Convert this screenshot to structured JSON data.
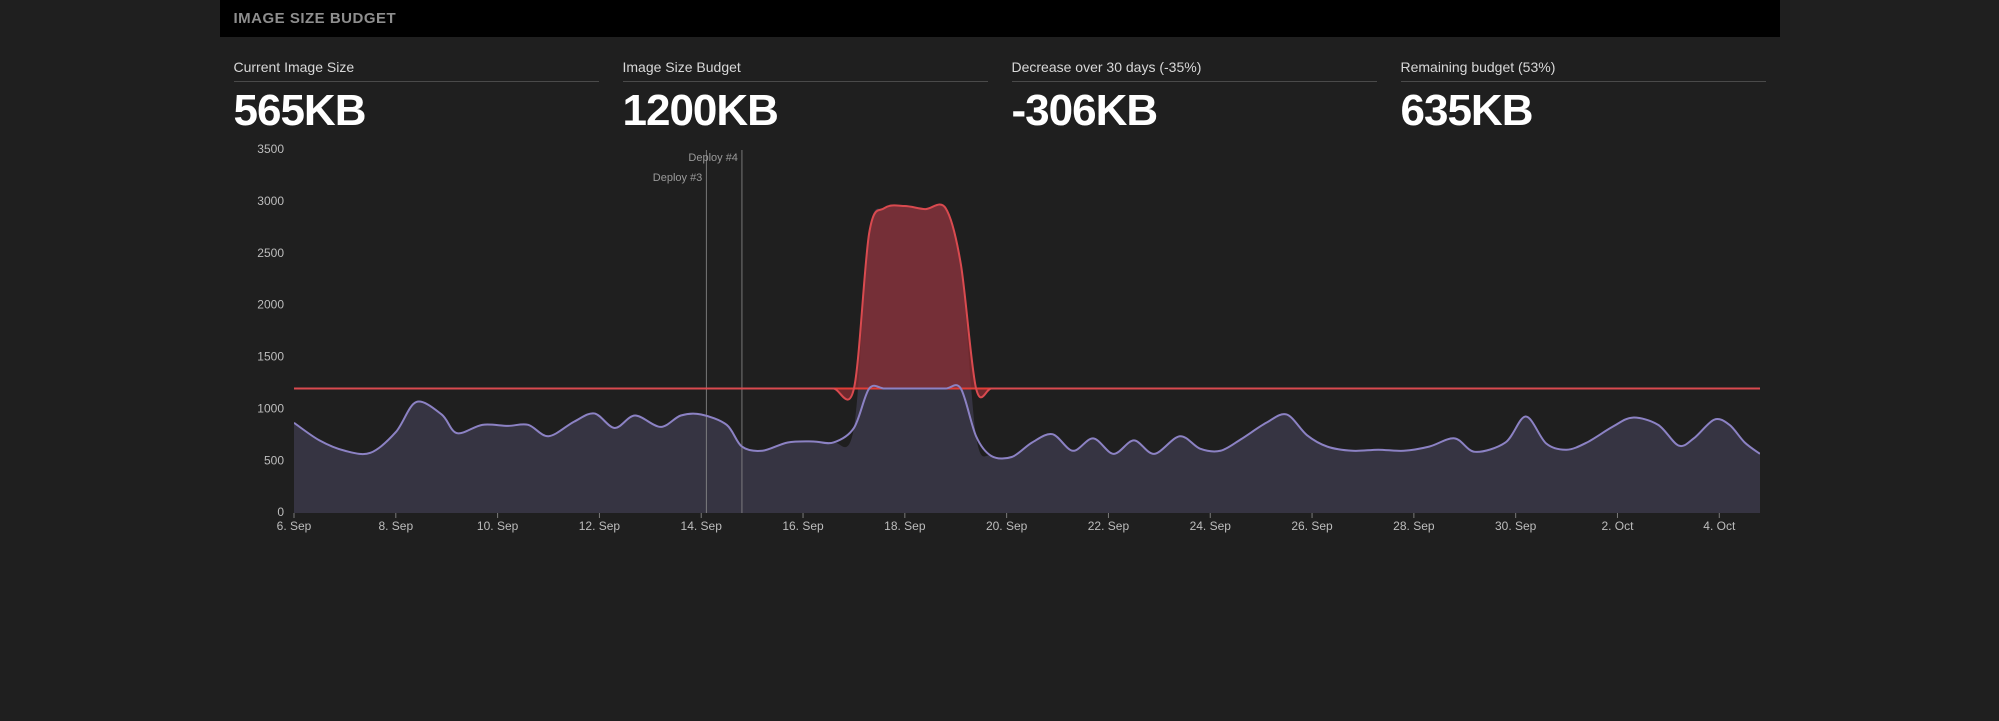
{
  "header": {
    "title": "IMAGE SIZE BUDGET"
  },
  "metrics": [
    {
      "label": "Current Image Size",
      "value": "565KB"
    },
    {
      "label": "Image Size Budget",
      "value": "1200KB"
    },
    {
      "label": "Decrease over 30 days (-35%)",
      "value": "-306KB"
    },
    {
      "label": "Remaining budget (53%)",
      "value": "635KB"
    }
  ],
  "chart": {
    "type": "area",
    "background_color": "#1f1f1f",
    "axis_font_size": 12,
    "axis_color": "#bdbdbd",
    "plot_bg": "#1f1f1f",
    "budget_line": {
      "value": 1200,
      "color": "#e03d37",
      "width": 2
    },
    "series": {
      "line_color": "#8c82c4",
      "line_width": 2,
      "fill_color": "#3b3849",
      "fill_opacity": 0.85,
      "over_budget_fill_color": "#8b2e34",
      "over_budget_fill_opacity": 0.75,
      "over_line_color": "#d94a4f"
    },
    "x_range": [
      0,
      28.8
    ],
    "y_range": [
      0,
      3500
    ],
    "y_ticks": [
      0,
      500,
      1000,
      1500,
      2000,
      2500,
      3000,
      3500
    ],
    "x_ticks": [
      {
        "x": 0,
        "label": "6. Sep"
      },
      {
        "x": 2,
        "label": "8. Sep"
      },
      {
        "x": 4,
        "label": "10. Sep"
      },
      {
        "x": 6,
        "label": "12. Sep"
      },
      {
        "x": 8,
        "label": "14. Sep"
      },
      {
        "x": 10,
        "label": "16. Sep"
      },
      {
        "x": 12,
        "label": "18. Sep"
      },
      {
        "x": 14,
        "label": "20. Sep"
      },
      {
        "x": 16,
        "label": "22. Sep"
      },
      {
        "x": 18,
        "label": "24. Sep"
      },
      {
        "x": 20,
        "label": "26. Sep"
      },
      {
        "x": 22,
        "label": "28. Sep"
      },
      {
        "x": 24,
        "label": "30. Sep"
      },
      {
        "x": 26,
        "label": "2. Oct"
      },
      {
        "x": 28,
        "label": "4. Oct"
      }
    ],
    "deploy_markers": [
      {
        "x": 8.1,
        "label": "Deploy #3",
        "label_y": 3230,
        "line_color": "#8e8e8e",
        "line_width": 0.8,
        "text_color": "#9a9a9a"
      },
      {
        "x": 8.8,
        "label": "Deploy #4",
        "label_y": 3420,
        "line_color": "#8e8e8e",
        "line_width": 0.8,
        "text_color": "#9a9a9a"
      }
    ],
    "data": [
      {
        "x": 0.0,
        "y": 870
      },
      {
        "x": 0.5,
        "y": 700
      },
      {
        "x": 1.0,
        "y": 600
      },
      {
        "x": 1.5,
        "y": 580
      },
      {
        "x": 2.0,
        "y": 780
      },
      {
        "x": 2.4,
        "y": 1070
      },
      {
        "x": 2.9,
        "y": 950
      },
      {
        "x": 3.2,
        "y": 770
      },
      {
        "x": 3.7,
        "y": 850
      },
      {
        "x": 4.2,
        "y": 840
      },
      {
        "x": 4.6,
        "y": 850
      },
      {
        "x": 5.0,
        "y": 740
      },
      {
        "x": 5.5,
        "y": 880
      },
      {
        "x": 5.9,
        "y": 960
      },
      {
        "x": 6.3,
        "y": 820
      },
      {
        "x": 6.7,
        "y": 940
      },
      {
        "x": 7.2,
        "y": 830
      },
      {
        "x": 7.6,
        "y": 940
      },
      {
        "x": 8.0,
        "y": 950
      },
      {
        "x": 8.5,
        "y": 850
      },
      {
        "x": 8.8,
        "y": 640
      },
      {
        "x": 9.2,
        "y": 600
      },
      {
        "x": 9.7,
        "y": 680
      },
      {
        "x": 10.2,
        "y": 690
      },
      {
        "x": 10.6,
        "y": 680
      },
      {
        "x": 11.0,
        "y": 820
      },
      {
        "x": 11.3,
        "y": 2700
      },
      {
        "x": 11.6,
        "y": 2940
      },
      {
        "x": 12.0,
        "y": 2960
      },
      {
        "x": 12.4,
        "y": 2930
      },
      {
        "x": 12.8,
        "y": 2940
      },
      {
        "x": 13.1,
        "y": 2400
      },
      {
        "x": 13.4,
        "y": 740
      },
      {
        "x": 13.7,
        "y": 550
      },
      {
        "x": 14.1,
        "y": 540
      },
      {
        "x": 14.5,
        "y": 680
      },
      {
        "x": 14.9,
        "y": 760
      },
      {
        "x": 15.3,
        "y": 600
      },
      {
        "x": 15.7,
        "y": 720
      },
      {
        "x": 16.1,
        "y": 570
      },
      {
        "x": 16.5,
        "y": 700
      },
      {
        "x": 16.9,
        "y": 570
      },
      {
        "x": 17.4,
        "y": 740
      },
      {
        "x": 17.8,
        "y": 620
      },
      {
        "x": 18.2,
        "y": 600
      },
      {
        "x": 18.6,
        "y": 710
      },
      {
        "x": 19.1,
        "y": 870
      },
      {
        "x": 19.5,
        "y": 950
      },
      {
        "x": 19.9,
        "y": 750
      },
      {
        "x": 20.3,
        "y": 640
      },
      {
        "x": 20.8,
        "y": 600
      },
      {
        "x": 21.3,
        "y": 610
      },
      {
        "x": 21.8,
        "y": 600
      },
      {
        "x": 22.3,
        "y": 640
      },
      {
        "x": 22.8,
        "y": 720
      },
      {
        "x": 23.2,
        "y": 590
      },
      {
        "x": 23.8,
        "y": 680
      },
      {
        "x": 24.2,
        "y": 930
      },
      {
        "x": 24.6,
        "y": 670
      },
      {
        "x": 25.0,
        "y": 610
      },
      {
        "x": 25.4,
        "y": 680
      },
      {
        "x": 25.9,
        "y": 830
      },
      {
        "x": 26.3,
        "y": 920
      },
      {
        "x": 26.8,
        "y": 850
      },
      {
        "x": 27.2,
        "y": 650
      },
      {
        "x": 27.5,
        "y": 720
      },
      {
        "x": 27.9,
        "y": 900
      },
      {
        "x": 28.2,
        "y": 850
      },
      {
        "x": 28.5,
        "y": 680
      },
      {
        "x": 28.8,
        "y": 570
      }
    ]
  }
}
